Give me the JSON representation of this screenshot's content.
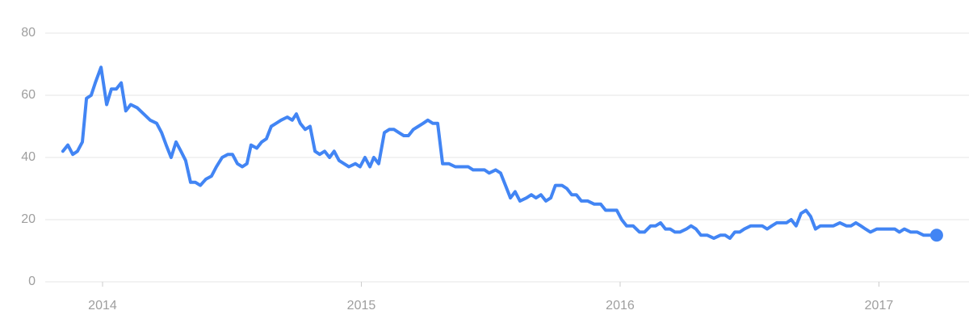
{
  "chart_data": {
    "type": "line",
    "x": [
      2013.847,
      2013.866,
      2013.885,
      2013.903,
      2013.922,
      2013.938,
      2013.956,
      2013.972,
      2013.994,
      2014.016,
      2014.034,
      2014.053,
      2014.072,
      2014.09,
      2014.109,
      2014.134,
      2014.159,
      2014.184,
      2014.209,
      2014.228,
      2014.246,
      2014.265,
      2014.284,
      2014.303,
      2014.321,
      2014.34,
      2014.359,
      2014.378,
      2014.399,
      2014.421,
      2014.44,
      2014.462,
      2014.484,
      2014.502,
      2014.521,
      2014.54,
      2014.558,
      2014.574,
      2014.596,
      2014.615,
      2014.633,
      2014.652,
      2014.671,
      2014.69,
      2014.714,
      2014.733,
      2014.749,
      2014.764,
      2014.783,
      2014.802,
      2014.821,
      2014.839,
      2014.858,
      2014.877,
      2014.895,
      2014.914,
      2014.933,
      2014.952,
      2014.977,
      2014.995,
      2015.014,
      2015.033,
      2015.048,
      2015.067,
      2015.089,
      2015.108,
      2015.126,
      2015.145,
      2015.164,
      2015.182,
      2015.201,
      2015.22,
      2015.239,
      2015.257,
      2015.276,
      2015.295,
      2015.314,
      2015.338,
      2015.363,
      2015.388,
      2015.413,
      2015.432,
      2015.457,
      2015.476,
      2015.494,
      2015.519,
      2015.538,
      2015.557,
      2015.576,
      2015.594,
      2015.613,
      2015.638,
      2015.657,
      2015.675,
      2015.694,
      2015.713,
      2015.732,
      2015.75,
      2015.775,
      2015.794,
      2015.813,
      2015.831,
      2015.85,
      2015.875,
      2015.9,
      2015.925,
      2015.944,
      2015.969,
      2015.987,
      2016.006,
      2016.025,
      2016.05,
      2016.075,
      2016.094,
      2016.118,
      2016.137,
      2016.156,
      2016.175,
      2016.193,
      2016.212,
      2016.231,
      2016.256,
      2016.274,
      2016.293,
      2016.312,
      2016.337,
      2016.362,
      2016.387,
      2016.406,
      2016.424,
      2016.443,
      2016.462,
      2016.48,
      2016.505,
      2016.53,
      2016.549,
      2016.568,
      2016.586,
      2016.605,
      2016.624,
      2016.643,
      2016.661,
      2016.68,
      2016.699,
      2016.718,
      2016.736,
      2016.755,
      2016.774,
      2016.799,
      2016.824,
      2016.849,
      2016.874,
      2016.892,
      2016.911,
      2016.93,
      2016.948,
      2016.967,
      2016.992,
      2017.017,
      2017.036,
      2017.061,
      2017.079,
      2017.098,
      2017.123,
      2017.148,
      2017.173,
      2017.198,
      2017.223
    ],
    "series": [
      {
        "color": "#4285f4",
        "values": [
          42,
          44,
          41,
          42,
          45,
          59,
          60,
          64,
          69,
          57,
          62,
          62,
          64,
          55,
          57,
          56,
          54,
          52,
          51,
          48,
          44,
          40,
          45,
          42,
          39,
          32,
          32,
          31,
          33,
          34,
          37,
          40,
          41,
          41,
          38,
          37,
          38,
          44,
          43,
          45,
          46,
          50,
          51,
          52,
          53,
          52,
          54,
          51,
          49,
          50,
          42,
          41,
          42,
          40,
          42,
          39,
          38,
          37,
          38,
          37,
          40,
          37,
          40,
          38,
          48,
          49,
          49,
          48,
          47,
          47,
          49,
          50,
          51,
          52,
          51,
          51,
          38,
          38,
          37,
          37,
          37,
          36,
          36,
          36,
          35,
          36,
          35,
          31,
          27,
          29,
          26,
          27,
          28,
          27,
          28,
          26,
          27,
          31,
          31,
          30,
          28,
          28,
          26,
          26,
          25,
          25,
          23,
          23,
          23,
          20,
          18,
          18,
          16,
          16,
          18,
          18,
          19,
          17,
          17,
          16,
          16,
          17,
          18,
          17,
          15,
          15,
          14,
          15,
          15,
          14,
          16,
          16,
          17,
          18,
          18,
          18,
          17,
          18,
          19,
          19,
          19,
          20,
          18,
          22,
          23,
          21,
          17,
          18,
          18,
          18,
          19,
          18,
          18,
          19,
          18,
          17,
          16,
          17,
          17,
          17,
          17,
          16,
          17,
          16,
          16,
          15,
          15,
          15
        ]
      }
    ],
    "xlim": [
      2013.791,
      2017.348
    ],
    "xticks": [
      2014,
      2015,
      2016,
      2017
    ],
    "ylim": [
      0,
      80
    ],
    "yticks": [
      0,
      20,
      40,
      60,
      80
    ],
    "grid": true
  }
}
